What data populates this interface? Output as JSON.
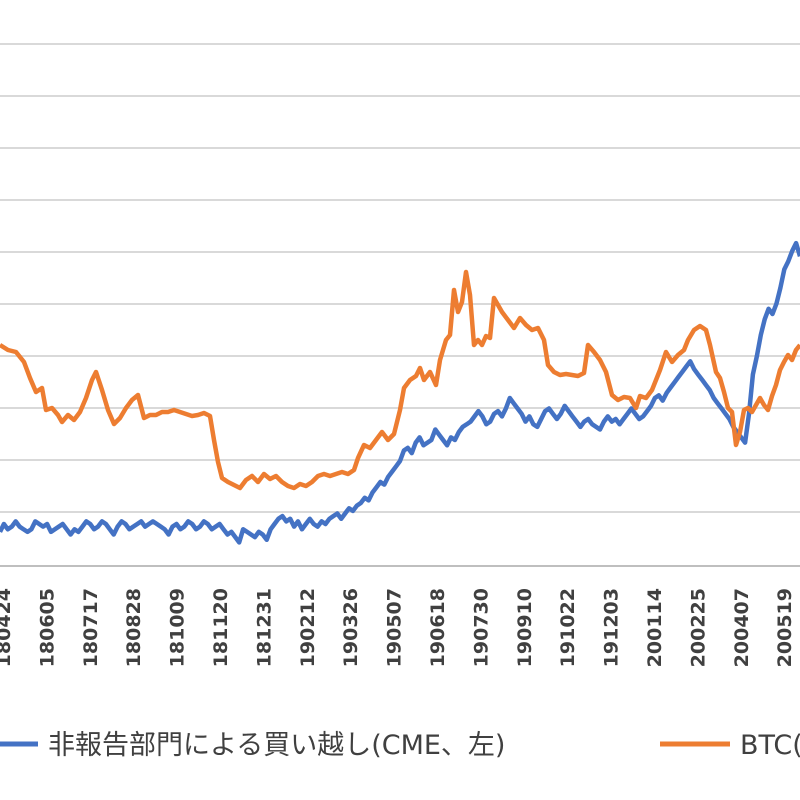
{
  "chart_data": {
    "type": "line",
    "title": "",
    "xlabel": "",
    "ylabel": "",
    "grid": true,
    "legend_position": "bottom",
    "x_tick_labels": [
      "180424",
      "180605",
      "180717",
      "180828",
      "181009",
      "181120",
      "181231",
      "190212",
      "190326",
      "190507",
      "190618",
      "190730",
      "190910",
      "191022",
      "191203",
      "200114",
      "200225",
      "200407",
      "200519"
    ],
    "series": [
      {
        "name": "非報告部門による買い越し(CME、左)",
        "color": "#4472c4",
        "values": [
          -5,
          -2,
          -4,
          -3,
          -1,
          -3,
          -4,
          -5,
          -4,
          -1,
          -2,
          -3,
          -2,
          -5,
          -4,
          -3,
          -2,
          -4,
          -6,
          -4,
          -5,
          -3,
          -1,
          -2,
          -4,
          -3,
          -1,
          -2,
          -4,
          -6,
          -3,
          -1,
          -2,
          -4,
          -3,
          -2,
          -1,
          -3,
          -2,
          -1,
          -2,
          -3,
          -4,
          -6,
          -3,
          -2,
          -4,
          -3,
          -1,
          -2,
          -4,
          -3,
          -1,
          -2,
          -4,
          -3,
          -2,
          -4,
          -6,
          -5,
          -7,
          -9,
          -4,
          -5,
          -6,
          -7,
          -5,
          -6,
          -8,
          -4,
          -2,
          0,
          1,
          -1,
          0,
          -3,
          -1,
          -4,
          -2,
          0,
          -2,
          -3,
          -1,
          -2,
          0,
          1,
          2,
          0,
          2,
          4,
          3,
          5,
          6,
          8,
          7,
          10,
          12,
          14,
          13,
          16,
          18,
          20,
          22,
          26,
          27,
          25,
          29,
          31,
          28,
          29,
          30,
          34,
          32,
          30,
          28,
          31,
          30,
          33,
          35,
          36,
          37,
          39,
          41,
          39,
          36,
          37,
          40,
          41,
          39,
          42,
          46,
          44,
          42,
          40,
          37,
          39,
          36,
          35,
          38,
          41,
          42,
          40,
          38,
          40,
          43,
          41,
          39,
          37,
          35,
          37,
          38,
          36,
          35,
          34,
          37,
          39,
          37,
          38,
          36,
          38,
          40,
          42,
          40,
          38,
          39,
          41,
          43,
          46,
          47,
          45,
          48,
          50,
          52,
          54,
          56,
          58,
          60,
          57,
          55,
          53,
          51,
          49,
          46,
          44,
          42,
          40,
          38,
          35,
          33,
          31,
          29,
          40,
          55,
          62,
          70,
          76,
          80,
          78,
          82,
          88,
          95,
          98,
          102,
          105,
          100
        ]
      },
      {
        "name": "BTC(",
        "color": "#ed7d31",
        "values": []
      }
    ]
  },
  "legend": {
    "series1_label": "非報告部門による買い越し(CME、左)",
    "series2_label": "BTC("
  }
}
